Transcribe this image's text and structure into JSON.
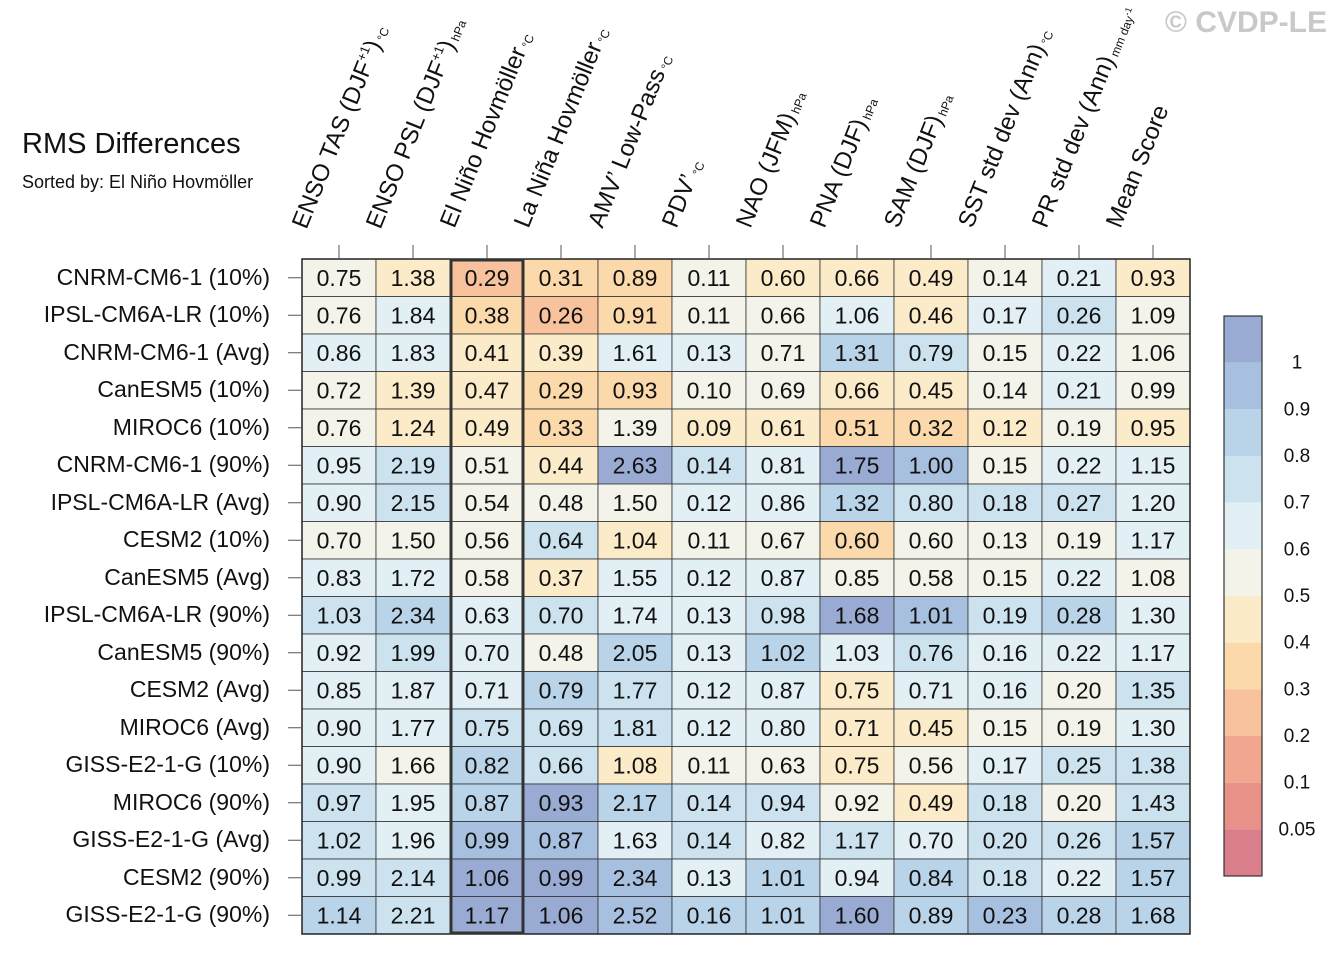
{
  "header": {
    "title": "RMS Differences",
    "subtitle": "Sorted by: El Niño Hovmöller",
    "watermark": "© CVDP-LE"
  },
  "chart_data": {
    "type": "heatmap",
    "title": "RMS Differences",
    "subtitle": "Sorted by: El Niño Hovmöller",
    "sorted_by": "El Niño Hovmöller",
    "highlighted_column": 2,
    "columns": [
      {
        "label": "ENSO TAS (DJF",
        "sup": "+1",
        "close": ")",
        "unit": "°C"
      },
      {
        "label": "ENSO PSL (DJF",
        "sup": "+1",
        "close": ")",
        "unit": "hPa"
      },
      {
        "label": "El Niño Hovmöller",
        "unit": "°C"
      },
      {
        "label": "La Niña Hovmöller",
        "unit": "°C"
      },
      {
        "label": "AMV’ Low-Pass",
        "unit": "°C"
      },
      {
        "label": "PDV’",
        "unit": "°C"
      },
      {
        "label": "NAO (JFM)",
        "unit": "hPa"
      },
      {
        "label": "PNA (DJF)",
        "unit": "hPa"
      },
      {
        "label": "SAM (DJF)",
        "unit": "hPa"
      },
      {
        "label": "SST std dev (Ann)",
        "unit": "°C"
      },
      {
        "label": "PR std dev (Ann)",
        "unit": "mm day",
        "unit_sup": "-1"
      },
      {
        "label": "Mean Score",
        "unit": ""
      }
    ],
    "rows": [
      "CNRM-CM6-1 (10%)",
      "IPSL-CM6A-LR (10%)",
      "CNRM-CM6-1 (Avg)",
      "CanESM5 (10%)",
      "MIROC6 (10%)",
      "CNRM-CM6-1 (90%)",
      "IPSL-CM6A-LR (Avg)",
      "CESM2 (10%)",
      "CanESM5 (Avg)",
      "IPSL-CM6A-LR (90%)",
      "CanESM5 (90%)",
      "CESM2 (Avg)",
      "MIROC6 (Avg)",
      "GISS-E2-1-G (10%)",
      "MIROC6 (90%)",
      "GISS-E2-1-G (Avg)",
      "CESM2 (90%)",
      "GISS-E2-1-G (90%)"
    ],
    "values": [
      [
        "0.75",
        "1.38",
        "0.29",
        "0.31",
        "0.89",
        "0.11",
        "0.60",
        "0.66",
        "0.49",
        "0.14",
        "0.21",
        "0.93"
      ],
      [
        "0.76",
        "1.84",
        "0.38",
        "0.26",
        "0.91",
        "0.11",
        "0.66",
        "1.06",
        "0.46",
        "0.17",
        "0.26",
        "1.09"
      ],
      [
        "0.86",
        "1.83",
        "0.41",
        "0.39",
        "1.61",
        "0.13",
        "0.71",
        "1.31",
        "0.79",
        "0.15",
        "0.22",
        "1.06"
      ],
      [
        "0.72",
        "1.39",
        "0.47",
        "0.29",
        "0.93",
        "0.10",
        "0.69",
        "0.66",
        "0.45",
        "0.14",
        "0.21",
        "0.99"
      ],
      [
        "0.76",
        "1.24",
        "0.49",
        "0.33",
        "1.39",
        "0.09",
        "0.61",
        "0.51",
        "0.32",
        "0.12",
        "0.19",
        "0.95"
      ],
      [
        "0.95",
        "2.19",
        "0.51",
        "0.44",
        "2.63",
        "0.14",
        "0.81",
        "1.75",
        "1.00",
        "0.15",
        "0.22",
        "1.15"
      ],
      [
        "0.90",
        "2.15",
        "0.54",
        "0.48",
        "1.50",
        "0.12",
        "0.86",
        "1.32",
        "0.80",
        "0.18",
        "0.27",
        "1.20"
      ],
      [
        "0.70",
        "1.50",
        "0.56",
        "0.64",
        "1.04",
        "0.11",
        "0.67",
        "0.60",
        "0.60",
        "0.13",
        "0.19",
        "1.17"
      ],
      [
        "0.83",
        "1.72",
        "0.58",
        "0.37",
        "1.55",
        "0.12",
        "0.87",
        "0.85",
        "0.58",
        "0.15",
        "0.22",
        "1.08"
      ],
      [
        "1.03",
        "2.34",
        "0.63",
        "0.70",
        "1.74",
        "0.13",
        "0.98",
        "1.68",
        "1.01",
        "0.19",
        "0.28",
        "1.30"
      ],
      [
        "0.92",
        "1.99",
        "0.70",
        "0.48",
        "2.05",
        "0.13",
        "1.02",
        "1.03",
        "0.76",
        "0.16",
        "0.22",
        "1.17"
      ],
      [
        "0.85",
        "1.87",
        "0.71",
        "0.79",
        "1.77",
        "0.12",
        "0.87",
        "0.75",
        "0.71",
        "0.16",
        "0.20",
        "1.35"
      ],
      [
        "0.90",
        "1.77",
        "0.75",
        "0.69",
        "1.81",
        "0.12",
        "0.80",
        "0.71",
        "0.45",
        "0.15",
        "0.19",
        "1.30"
      ],
      [
        "0.90",
        "1.66",
        "0.82",
        "0.66",
        "1.08",
        "0.11",
        "0.63",
        "0.75",
        "0.56",
        "0.17",
        "0.25",
        "1.38"
      ],
      [
        "0.97",
        "1.95",
        "0.87",
        "0.93",
        "2.17",
        "0.14",
        "0.94",
        "0.92",
        "0.49",
        "0.18",
        "0.20",
        "1.43"
      ],
      [
        "1.02",
        "1.96",
        "0.99",
        "0.87",
        "1.63",
        "0.14",
        "0.82",
        "1.17",
        "0.70",
        "0.20",
        "0.26",
        "1.57"
      ],
      [
        "0.99",
        "2.14",
        "1.06",
        "0.99",
        "2.34",
        "0.13",
        "1.01",
        "0.94",
        "0.84",
        "0.18",
        "0.22",
        "1.57"
      ],
      [
        "1.14",
        "2.21",
        "1.17",
        "1.06",
        "2.52",
        "0.16",
        "1.01",
        "1.60",
        "0.89",
        "0.23",
        "0.28",
        "1.68"
      ]
    ],
    "colorbar": {
      "labels": [
        "1",
        "0.9",
        "0.8",
        "0.7",
        "0.6",
        "0.5",
        "0.4",
        "0.3",
        "0.2",
        "0.1",
        "0.05"
      ],
      "colors_top_to_bottom": [
        "#9aabd3",
        "#a7c0df",
        "#b9d3e8",
        "#cce3ef",
        "#e2eff4",
        "#f3f3ea",
        "#fbebc8",
        "#fbd9ab",
        "#f8c29c",
        "#f1a690",
        "#e89189",
        "#da7e8b"
      ]
    }
  }
}
